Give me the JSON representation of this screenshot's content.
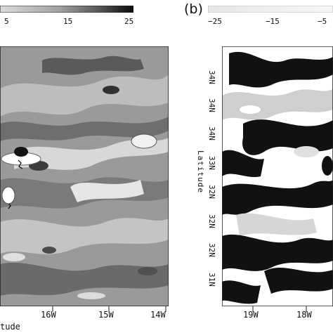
{
  "chart_data": [
    {
      "type": "heatmap",
      "panel": "",
      "colorbar": {
        "ticks": [
          "5",
          "15",
          "25"
        ],
        "range": [
          0,
          25
        ],
        "colors": [
          "#ffffff",
          "#dcdcdc",
          "#b4b4b4",
          "#8c8c8c",
          "#646464",
          "#3c3c3c",
          "#141414"
        ]
      },
      "x_ticks": [
        "16W",
        "15W",
        "14W"
      ],
      "xlabel": "tude",
      "y_ticks": [],
      "ylabel": "",
      "note": ""
    },
    {
      "type": "heatmap",
      "panel": "(b)",
      "colorbar": {
        "ticks": [
          "−25",
          "−15",
          "−5"
        ],
        "range": [
          -25,
          0
        ],
        "colors": [
          "#ffffff",
          "#e8e8e8",
          "#d0d0d0",
          "#b8b8b8"
        ]
      },
      "x_ticks": [
        "19W",
        "18W"
      ],
      "xlabel": "",
      "y_ticks": [
        "34N",
        "34N",
        "34N",
        "33N",
        "32N",
        "32N",
        "32N",
        "31N"
      ],
      "ylabel": "Latitude"
    }
  ]
}
